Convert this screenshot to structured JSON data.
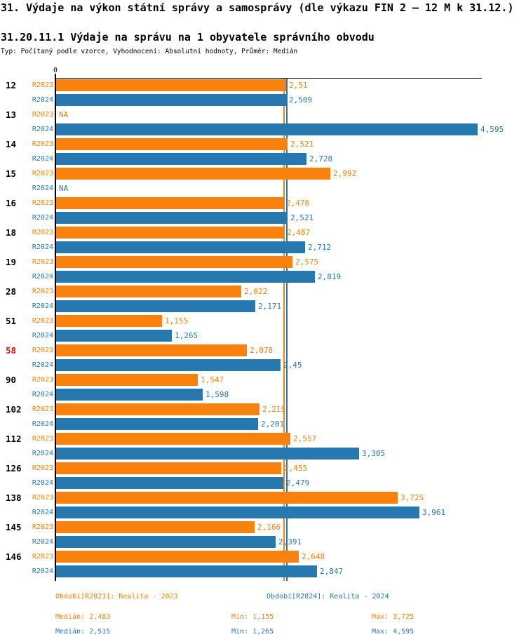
{
  "header": {
    "title": "31. Výdaje na výkon státní správy a samosprávy (dle výkazu FIN 2 – 12 M k 31.12.)",
    "subtitle": "31.20.11.1 Výdaje na správu na 1 obyvatele správního obvodu",
    "meta": "Typ: Počítaný podle vzorce, Vyhodnocení: Absolutní hodnoty, Průměr: Medián"
  },
  "colors": {
    "r2023": "#f8820d",
    "r2024": "#2878b0",
    "category": "#000000",
    "highlight": "#e80f0f",
    "axis": "#000000"
  },
  "chart_data": {
    "type": "bar",
    "orientation": "horizontal",
    "title": "31.20.11.1 Výdaje na správu na 1 obyvatele správního obvodu",
    "x_axis": {
      "zero_label": "0",
      "min": 0,
      "max_shown": 4.65,
      "grid": false
    },
    "series_labels": [
      "R2023",
      "R2024"
    ],
    "na_label": "NA",
    "highlighted_categories": [
      "58"
    ],
    "categories": [
      "12",
      "13",
      "14",
      "15",
      "16",
      "18",
      "19",
      "28",
      "51",
      "58",
      "90",
      "102",
      "112",
      "126",
      "138",
      "145",
      "146"
    ],
    "rows": [
      {
        "category": "12",
        "r2023": {
          "value": 2.51,
          "label": "2,51"
        },
        "r2024": {
          "value": 2.509,
          "label": "2,509"
        }
      },
      {
        "category": "13",
        "r2023": {
          "value": null,
          "label": "NA"
        },
        "r2024": {
          "value": 4.595,
          "label": "4,595"
        }
      },
      {
        "category": "14",
        "r2023": {
          "value": 2.521,
          "label": "2,521"
        },
        "r2024": {
          "value": 2.728,
          "label": "2,728"
        }
      },
      {
        "category": "15",
        "r2023": {
          "value": 2.992,
          "label": "2,992"
        },
        "r2024": {
          "value": null,
          "label": "NA"
        }
      },
      {
        "category": "16",
        "r2023": {
          "value": 2.478,
          "label": "2,478"
        },
        "r2024": {
          "value": 2.521,
          "label": "2,521"
        }
      },
      {
        "category": "18",
        "r2023": {
          "value": 2.487,
          "label": "2,487"
        },
        "r2024": {
          "value": 2.712,
          "label": "2,712"
        }
      },
      {
        "category": "19",
        "r2023": {
          "value": 2.575,
          "label": "2,575"
        },
        "r2024": {
          "value": 2.819,
          "label": "2,819"
        }
      },
      {
        "category": "28",
        "r2023": {
          "value": 2.022,
          "label": "2,022"
        },
        "r2024": {
          "value": 2.171,
          "label": "2,171"
        }
      },
      {
        "category": "51",
        "r2023": {
          "value": 1.155,
          "label": "1,155"
        },
        "r2024": {
          "value": 1.265,
          "label": "1,265"
        }
      },
      {
        "category": "58",
        "r2023": {
          "value": 2.078,
          "label": "2,078"
        },
        "r2024": {
          "value": 2.45,
          "label": "2,45"
        }
      },
      {
        "category": "90",
        "r2023": {
          "value": 1.547,
          "label": "1,547"
        },
        "r2024": {
          "value": 1.598,
          "label": "1,598"
        }
      },
      {
        "category": "102",
        "r2023": {
          "value": 2.219,
          "label": "2,219"
        },
        "r2024": {
          "value": 2.201,
          "label": "2,201"
        }
      },
      {
        "category": "112",
        "r2023": {
          "value": 2.557,
          "label": "2,557"
        },
        "r2024": {
          "value": 3.305,
          "label": "3,305"
        }
      },
      {
        "category": "126",
        "r2023": {
          "value": 2.455,
          "label": "2,455"
        },
        "r2024": {
          "value": 2.479,
          "label": "2,479"
        }
      },
      {
        "category": "138",
        "r2023": {
          "value": 3.725,
          "label": "3,725"
        },
        "r2024": {
          "value": 3.961,
          "label": "3,961"
        }
      },
      {
        "category": "145",
        "r2023": {
          "value": 2.166,
          "label": "2,166"
        },
        "r2024": {
          "value": 2.391,
          "label": "2,391"
        }
      },
      {
        "category": "146",
        "r2023": {
          "value": 2.648,
          "label": "2,648"
        },
        "r2024": {
          "value": 2.847,
          "label": "2,847"
        }
      }
    ],
    "median_lines": [
      {
        "series": "R2023",
        "value": 2.483
      },
      {
        "series": "R2024",
        "value": 2.515
      }
    ],
    "stats": {
      "r2023": {
        "median": 2.483,
        "min": 1.155,
        "max": 3.725
      },
      "r2024": {
        "median": 2.515,
        "min": 1.265,
        "max": 4.595
      }
    }
  },
  "legend": {
    "period_2023": "Období[R2023]: Realita - 2023",
    "period_2024": "Období[R2024]: Realita - 2024",
    "median_2023": "Medián: 2,483",
    "min_2023": "Min: 1,155",
    "max_2023": "Max: 3,725",
    "median_2024": "Medián: 2,515",
    "min_2024": "Min: 1,265",
    "max_2024": "Max: 4,595"
  }
}
